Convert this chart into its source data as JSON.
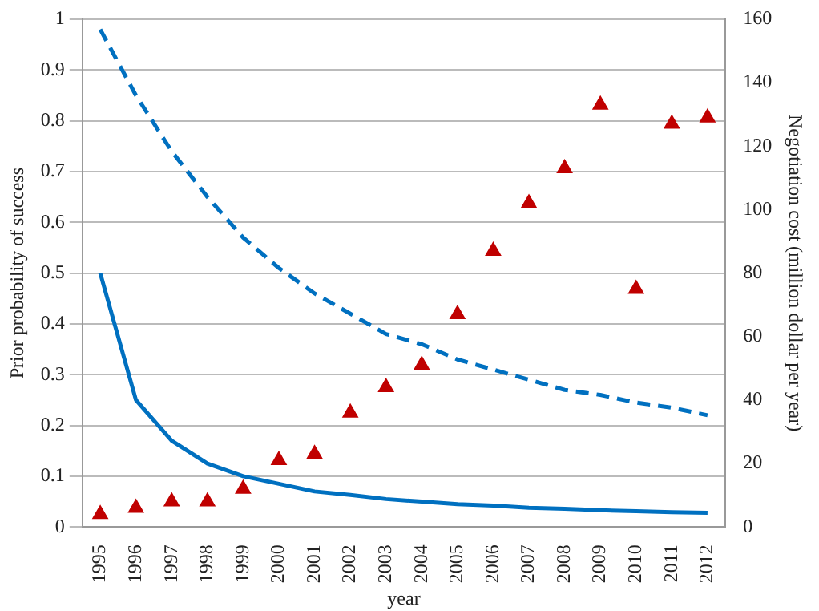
{
  "chart_data": {
    "type": "line",
    "xlabel": "year",
    "ylabel": "Prior probability of success",
    "y2label": "Negotiation cost (million dollar per year)",
    "categories": [
      "1995",
      "1996",
      "1997",
      "1998",
      "1999",
      "2000",
      "2001",
      "2002",
      "2003",
      "2004",
      "2005",
      "2006",
      "2007",
      "2008",
      "2009",
      "2010",
      "2011",
      "2012"
    ],
    "series": [
      {
        "color": "#0070c0",
        "line_style": "solid",
        "marker": "none",
        "values": [
          0.5,
          0.25,
          0.17,
          0.125,
          0.1,
          0.085,
          0.07,
          0.063,
          0.055,
          0.05,
          0.045,
          0.042,
          0.038,
          0.036,
          0.033,
          0.031,
          0.029,
          0.028
        ]
      },
      {
        "color": "#0070c0",
        "line_style": "dashed",
        "marker": "none",
        "values": [
          0.98,
          0.85,
          0.74,
          0.65,
          0.57,
          0.51,
          0.46,
          0.42,
          0.38,
          0.36,
          0.33,
          0.31,
          0.29,
          0.27,
          0.26,
          0.245,
          0.235,
          0.22
        ]
      },
      {
        "type": "scatter",
        "axis": "y2",
        "color": "#c00000",
        "marker": "triangle",
        "values": [
          4,
          6,
          8,
          8,
          12,
          21,
          23,
          36,
          44,
          51,
          67,
          87,
          102,
          113,
          133,
          75,
          127,
          129
        ]
      }
    ],
    "ylim": [
      0,
      1
    ],
    "yticks": [
      0,
      0.1,
      0.2,
      0.3,
      0.4,
      0.5,
      0.6,
      0.7,
      0.8,
      0.9,
      1
    ],
    "y2lim": [
      0,
      160
    ],
    "y2ticks": [
      0,
      20,
      40,
      60,
      80,
      100,
      120,
      140,
      160
    ],
    "grid": "y",
    "legend": false
  }
}
